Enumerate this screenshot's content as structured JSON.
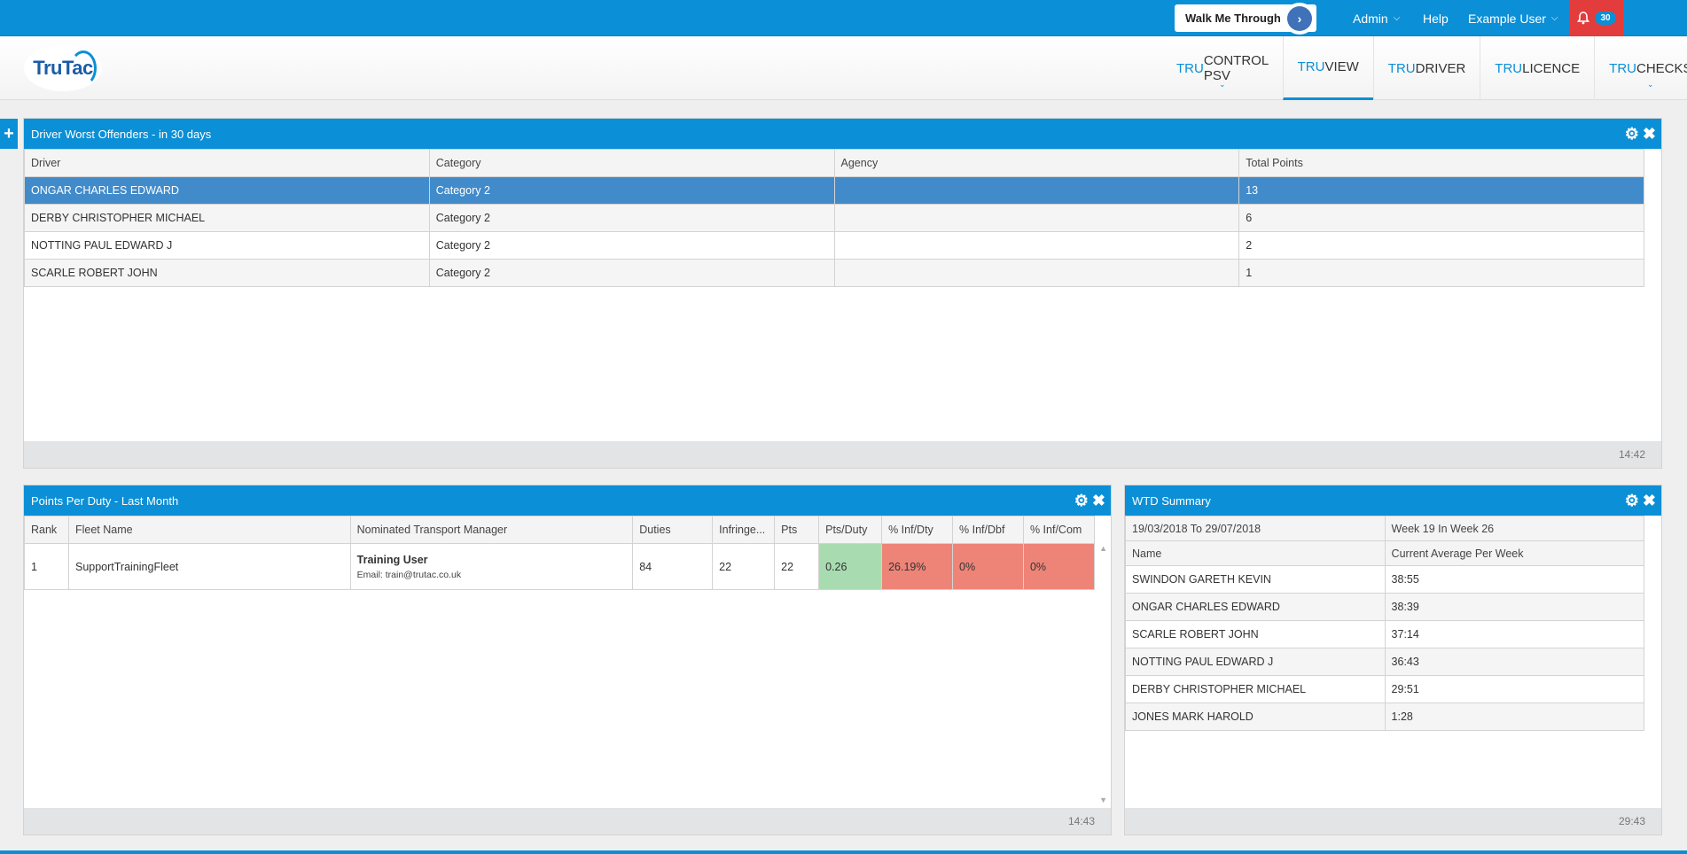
{
  "topbar": {
    "walk_label": "Walk Me Through",
    "admin_label": "Admin",
    "help_label": "Help",
    "user_label": "Example User",
    "notification_count": "30"
  },
  "header": {
    "logo_text": "TruTac",
    "modules": [
      {
        "prefix": "TRU",
        "rest": "CONTROL PSV"
      },
      {
        "prefix": "TRU",
        "rest": "VIEW"
      },
      {
        "prefix": "TRU",
        "rest": "DRIVER"
      },
      {
        "prefix": "TRU",
        "rest": "LICENCE"
      },
      {
        "prefix": "TRU",
        "rest": "CHECKS"
      }
    ]
  },
  "offenders": {
    "title": "Driver Worst Offenders - in 30 days",
    "columns": [
      "Driver",
      "Category",
      "Agency",
      "Total Points"
    ],
    "rows": [
      [
        "ONGAR CHARLES EDWARD",
        "Category 2",
        "",
        "13"
      ],
      [
        "DERBY CHRISTOPHER MICHAEL",
        "Category 2",
        "",
        "6"
      ],
      [
        "NOTTING PAUL EDWARD J",
        "Category 2",
        "",
        "2"
      ],
      [
        "SCARLE ROBERT JOHN",
        "Category 2",
        "",
        "1"
      ]
    ],
    "footer_time": "14:42"
  },
  "points": {
    "title": "Points Per Duty - Last Month",
    "columns": [
      "Rank",
      "Fleet Name",
      "Nominated Transport Manager",
      "Duties",
      "Infringe...",
      "Pts",
      "Pts/Duty",
      "% Inf/Dty",
      "% Inf/Dbf",
      "% Inf/Com"
    ],
    "row": {
      "rank": "1",
      "fleet": "SupportTrainingFleet",
      "manager_name": "Training User",
      "manager_email": "Email: train@trutac.co.uk",
      "duties": "84",
      "infringements": "22",
      "pts": "22",
      "pts_duty": "0.26",
      "inf_dty": "26.19%",
      "inf_dbf": "0%",
      "inf_com": "0%"
    },
    "colors": {
      "good": "#a8dcb0",
      "bad": "#ee8478"
    },
    "footer_time": "14:43"
  },
  "wtd": {
    "title": "WTD Summary",
    "period": "19/03/2018 To 29/07/2018",
    "week": "Week 19 In Week 26",
    "columns": [
      "Name",
      "Current Average Per Week"
    ],
    "rows": [
      [
        "SWINDON GARETH KEVIN",
        "38:55"
      ],
      [
        "ONGAR CHARLES EDWARD",
        "38:39"
      ],
      [
        "SCARLE ROBERT JOHN",
        "37:14"
      ],
      [
        "NOTTING PAUL EDWARD J",
        "36:43"
      ],
      [
        "DERBY CHRISTOPHER MICHAEL",
        "29:51"
      ],
      [
        "JONES MARK HAROLD",
        "1:28"
      ]
    ],
    "footer_time": "29:43"
  }
}
